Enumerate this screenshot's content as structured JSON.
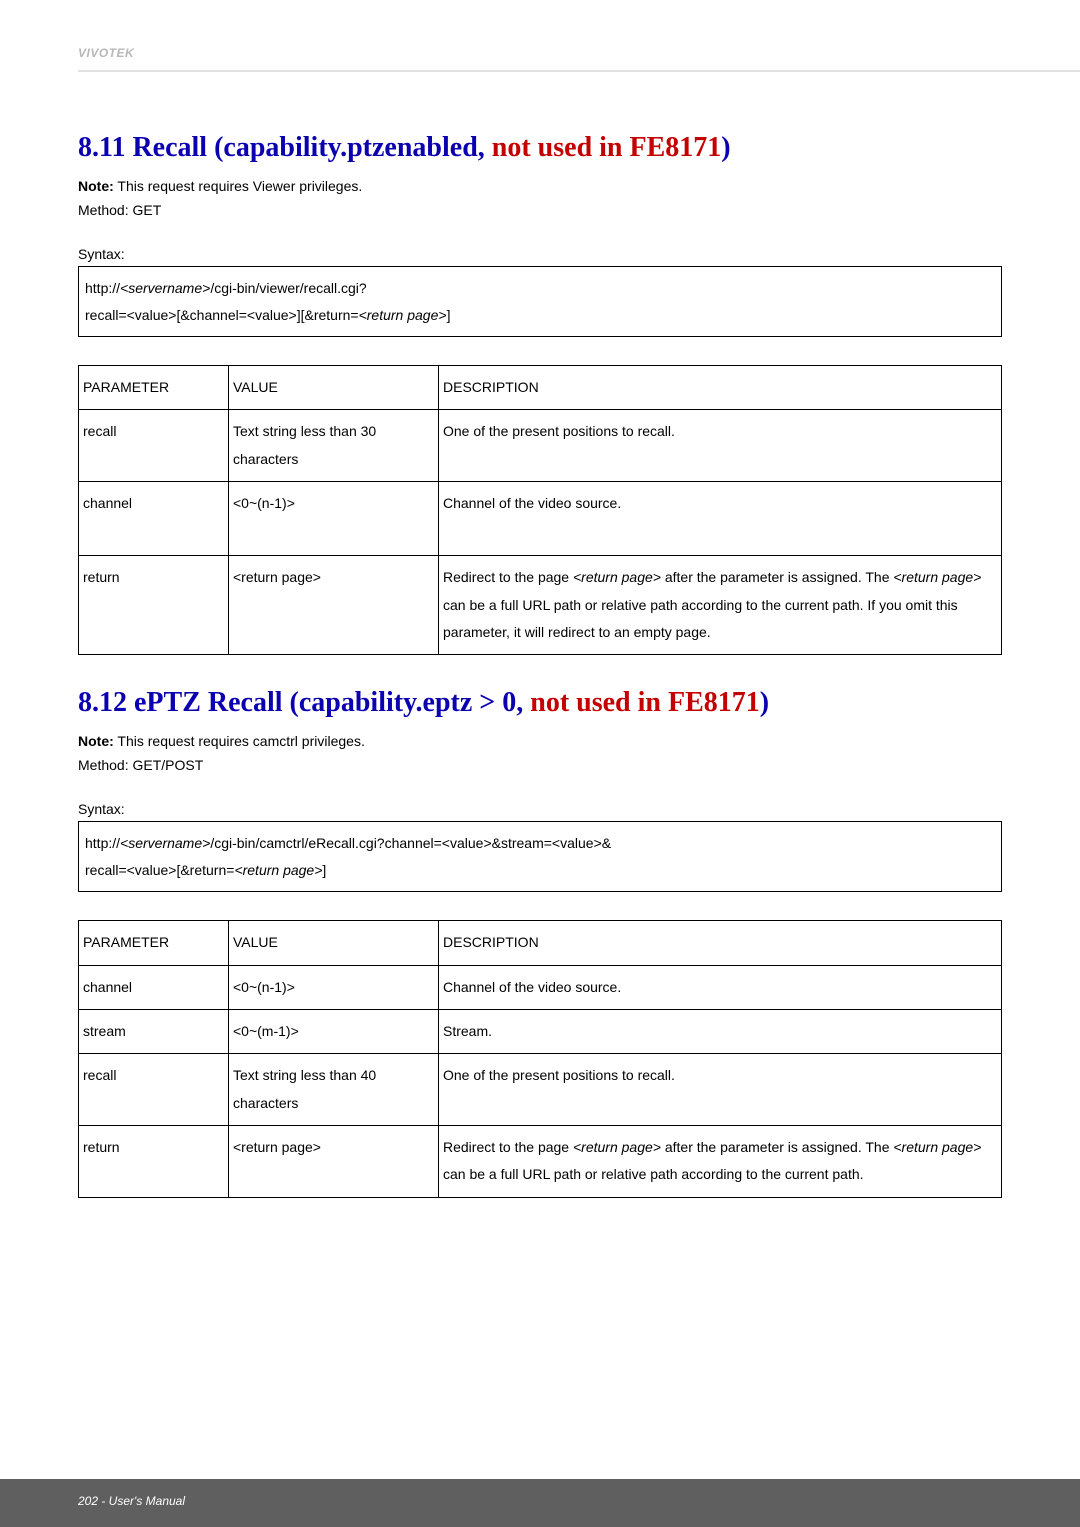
{
  "brand": "VIVOTEK",
  "colors": {
    "heading_blue": "#0b00b0",
    "heading_red": "#c40000",
    "header_line": "#e2e2e2",
    "brand_gray": "#b8b8b8",
    "footer_bg": "#5f5f5f",
    "border": "#000000",
    "text": "#000000"
  },
  "sections": [
    {
      "heading_prefix": "8.11 Recall (capability.ptzenabled, ",
      "heading_red": "not used in FE8171",
      "heading_suffix": ")",
      "note_label": "Note:",
      "note_text": " This request requires Viewer privileges.",
      "method": "Method: GET",
      "syntax_label": "Syntax:",
      "code_lines": [
        {
          "parts": [
            {
              "t": "http://"
            },
            {
              "t": "<servername>",
              "italic": true
            },
            {
              "t": "/cgi-bin/viewer/recall.cgi?"
            }
          ]
        },
        {
          "parts": [
            {
              "t": "recall=<value>[&channel=<value>][&return="
            },
            {
              "t": "<return page>",
              "italic": true
            },
            {
              "t": "]"
            }
          ]
        }
      ],
      "table": {
        "headers": [
          "PARAMETER",
          "VALUE",
          "DESCRIPTION"
        ],
        "rows": [
          {
            "param": "recall",
            "value": "Text string less than 30 characters",
            "desc_parts": [
              {
                "t": "One of the present positions to recall."
              }
            ]
          },
          {
            "param": "channel",
            "value": "<0~(n-1)>",
            "desc_parts": [
              {
                "t": "Channel of the video source."
              }
            ],
            "tall": true
          },
          {
            "param": "return",
            "value": "<return page>",
            "desc_parts": [
              {
                "t": "Redirect to the page "
              },
              {
                "t": "<return page>",
                "italic": true
              },
              {
                "t": " after the parameter is assigned. The "
              },
              {
                "t": "<return page>",
                "italic": true
              },
              {
                "t": " can be a full URL path or relative path according to the current path. If you omit this parameter, it will redirect to an empty page."
              }
            ]
          }
        ]
      }
    },
    {
      "heading_prefix": "8.12 ePTZ Recall (capability.eptz > 0, ",
      "heading_red": "not used in FE8171",
      "heading_suffix": ")",
      "note_label": "Note:",
      "note_text": " This request requires camctrl privileges.",
      "method": "Method: GET/POST",
      "syntax_label": "Syntax:",
      "code_lines": [
        {
          "parts": [
            {
              "t": "http://"
            },
            {
              "t": "<servername>",
              "italic": true
            },
            {
              "t": "/cgi-bin/camctrl/eRecall.cgi?channel=<value>&stream=<value>&"
            }
          ]
        },
        {
          "parts": [
            {
              "t": "recall=<value>[&return="
            },
            {
              "t": "<return page>",
              "italic": true
            },
            {
              "t": "]"
            }
          ]
        }
      ],
      "table": {
        "headers": [
          "PARAMETER",
          "VALUE",
          "DESCRIPTION"
        ],
        "rows": [
          {
            "param": "channel",
            "value": "<0~(n-1)>",
            "desc_parts": [
              {
                "t": "Channel of the video source."
              }
            ]
          },
          {
            "param": "stream",
            "value": "<0~(m-1)>",
            "desc_parts": [
              {
                "t": "Stream."
              }
            ]
          },
          {
            "param": "recall",
            "value": "Text string less than 40 characters",
            "desc_parts": [
              {
                "t": "One of the present positions to recall."
              }
            ]
          },
          {
            "param": "return",
            "value": "<return page>",
            "desc_parts": [
              {
                "t": "Redirect to the page "
              },
              {
                "t": "<return page>",
                "italic": true
              },
              {
                "t": " after the parameter is assigned. The "
              },
              {
                "t": "<return page>",
                "italic": true
              },
              {
                "t": " can be a full URL path or relative path according to the current path."
              }
            ]
          }
        ]
      }
    }
  ],
  "footer": "202 - User's Manual"
}
